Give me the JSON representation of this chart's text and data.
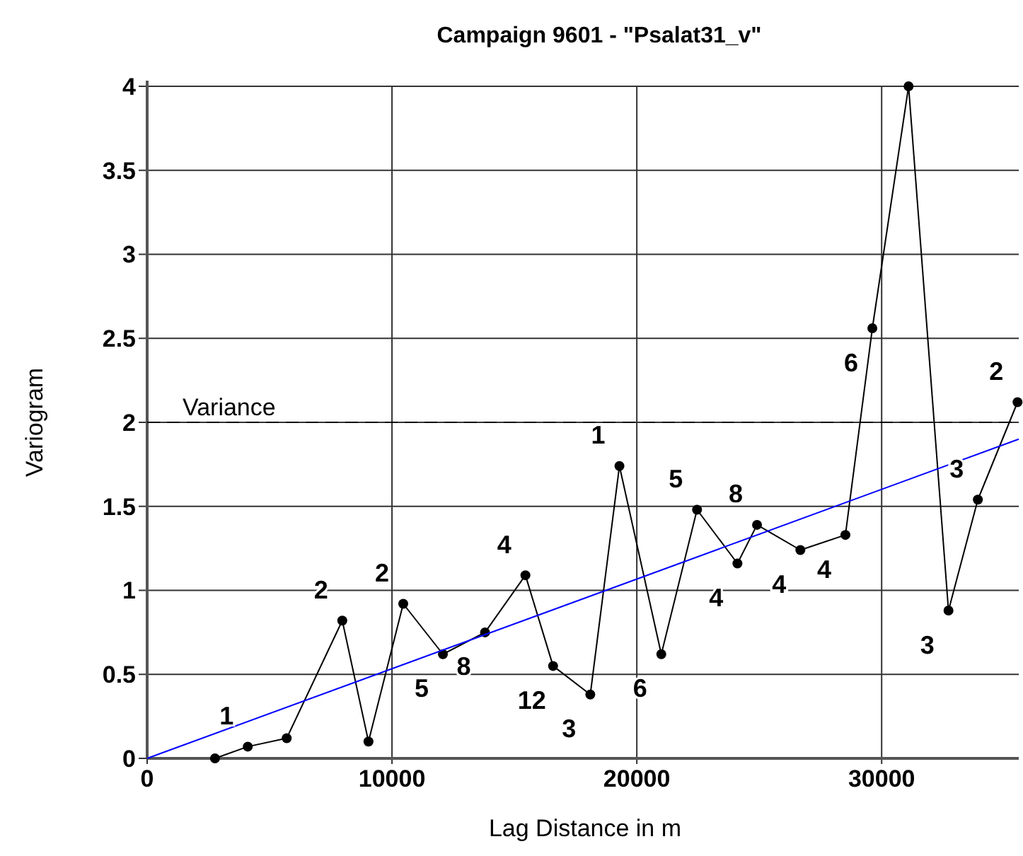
{
  "chart_data": {
    "type": "line",
    "title": "Campaign 9601 -  \"Psalat31_v\"",
    "xlabel": "Lag Distance in m",
    "ylabel": "Variogram",
    "xlim": [
      0,
      35600
    ],
    "xticks": [
      0,
      10000,
      20000,
      30000
    ],
    "ylim": [
      0,
      4
    ],
    "yticks": [
      0,
      0.5,
      1,
      1.5,
      2,
      2.5,
      3,
      3.5,
      4
    ],
    "grid": true,
    "series": [
      {
        "color": "#000000",
        "marker": "circle",
        "x": [
          2770,
          4110,
          5700,
          7970,
          9040,
          10460,
          12080,
          13800,
          15450,
          16580,
          18100,
          19290,
          21000,
          22460,
          24110,
          24910,
          26680,
          28520,
          29620,
          31100,
          32730,
          33930,
          35550
        ],
        "values": [
          0,
          0.07,
          0.12,
          0.82,
          0.1,
          0.92,
          0.62,
          0.75,
          1.09,
          0.55,
          0.38,
          1.74,
          0.62,
          1.48,
          1.16,
          1.39,
          1.24,
          1.33,
          2.56,
          4.0,
          0.88,
          1.54,
          2.12
        ]
      },
      {
        "color": "#0000ff",
        "marker": "none",
        "x": [
          0,
          35600
        ],
        "values": [
          0,
          1.9
        ]
      }
    ],
    "ref_lines": [
      {
        "axis": "y",
        "value": 2,
        "label": "Variance",
        "line_style": "dashed",
        "color": "#000000"
      }
    ],
    "annotations": [
      {
        "text": "1",
        "x": 4110,
        "y": 0.07
      },
      {
        "text": "2",
        "x": 7970,
        "y": 0.82
      },
      {
        "text": "2",
        "x": 10460,
        "y": 0.92
      },
      {
        "text": "5",
        "x": 12080,
        "y": 0.62
      },
      {
        "text": "8",
        "x": 13800,
        "y": 0.75
      },
      {
        "text": "4",
        "x": 15450,
        "y": 1.09
      },
      {
        "text": "12",
        "x": 16580,
        "y": 0.55
      },
      {
        "text": "3",
        "x": 18100,
        "y": 0.38
      },
      {
        "text": "1",
        "x": 19290,
        "y": 1.74
      },
      {
        "text": "6",
        "x": 21000,
        "y": 0.62
      },
      {
        "text": "5",
        "x": 22460,
        "y": 1.48
      },
      {
        "text": "4",
        "x": 24110,
        "y": 1.16
      },
      {
        "text": "8",
        "x": 24910,
        "y": 1.39
      },
      {
        "text": "4",
        "x": 26680,
        "y": 1.24
      },
      {
        "text": "4",
        "x": 28520,
        "y": 1.33
      },
      {
        "text": "6",
        "x": 29620,
        "y": 2.56
      },
      {
        "text": "3",
        "x": 32730,
        "y": 0.88
      },
      {
        "text": "3",
        "x": 33930,
        "y": 1.54
      },
      {
        "text": "2",
        "x": 35550,
        "y": 2.12
      }
    ]
  }
}
